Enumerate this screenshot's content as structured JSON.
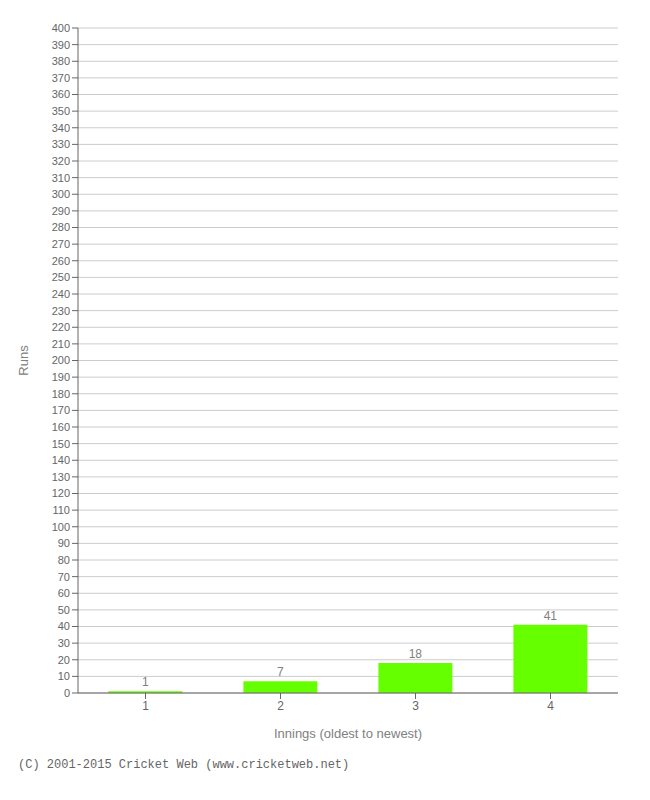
{
  "chart_data": {
    "type": "bar",
    "categories": [
      "1",
      "2",
      "3",
      "4"
    ],
    "values": [
      1,
      7,
      18,
      41
    ],
    "color": "#66ff00",
    "xlabel": "Innings (oldest to newest)",
    "ylabel": "Runs",
    "ylim": [
      0,
      400
    ],
    "yticks": [
      0,
      10,
      20,
      30,
      40,
      50,
      60,
      70,
      80,
      90,
      100,
      110,
      120,
      130,
      140,
      150,
      160,
      170,
      180,
      190,
      200,
      210,
      220,
      230,
      240,
      250,
      260,
      270,
      280,
      290,
      300,
      310,
      320,
      330,
      340,
      350,
      360,
      370,
      380,
      390,
      400
    ],
    "grid": true,
    "data_labels": true,
    "annotations": [
      "(C) 2001-2015 Cricket Web (www.cricketweb.net)"
    ]
  }
}
